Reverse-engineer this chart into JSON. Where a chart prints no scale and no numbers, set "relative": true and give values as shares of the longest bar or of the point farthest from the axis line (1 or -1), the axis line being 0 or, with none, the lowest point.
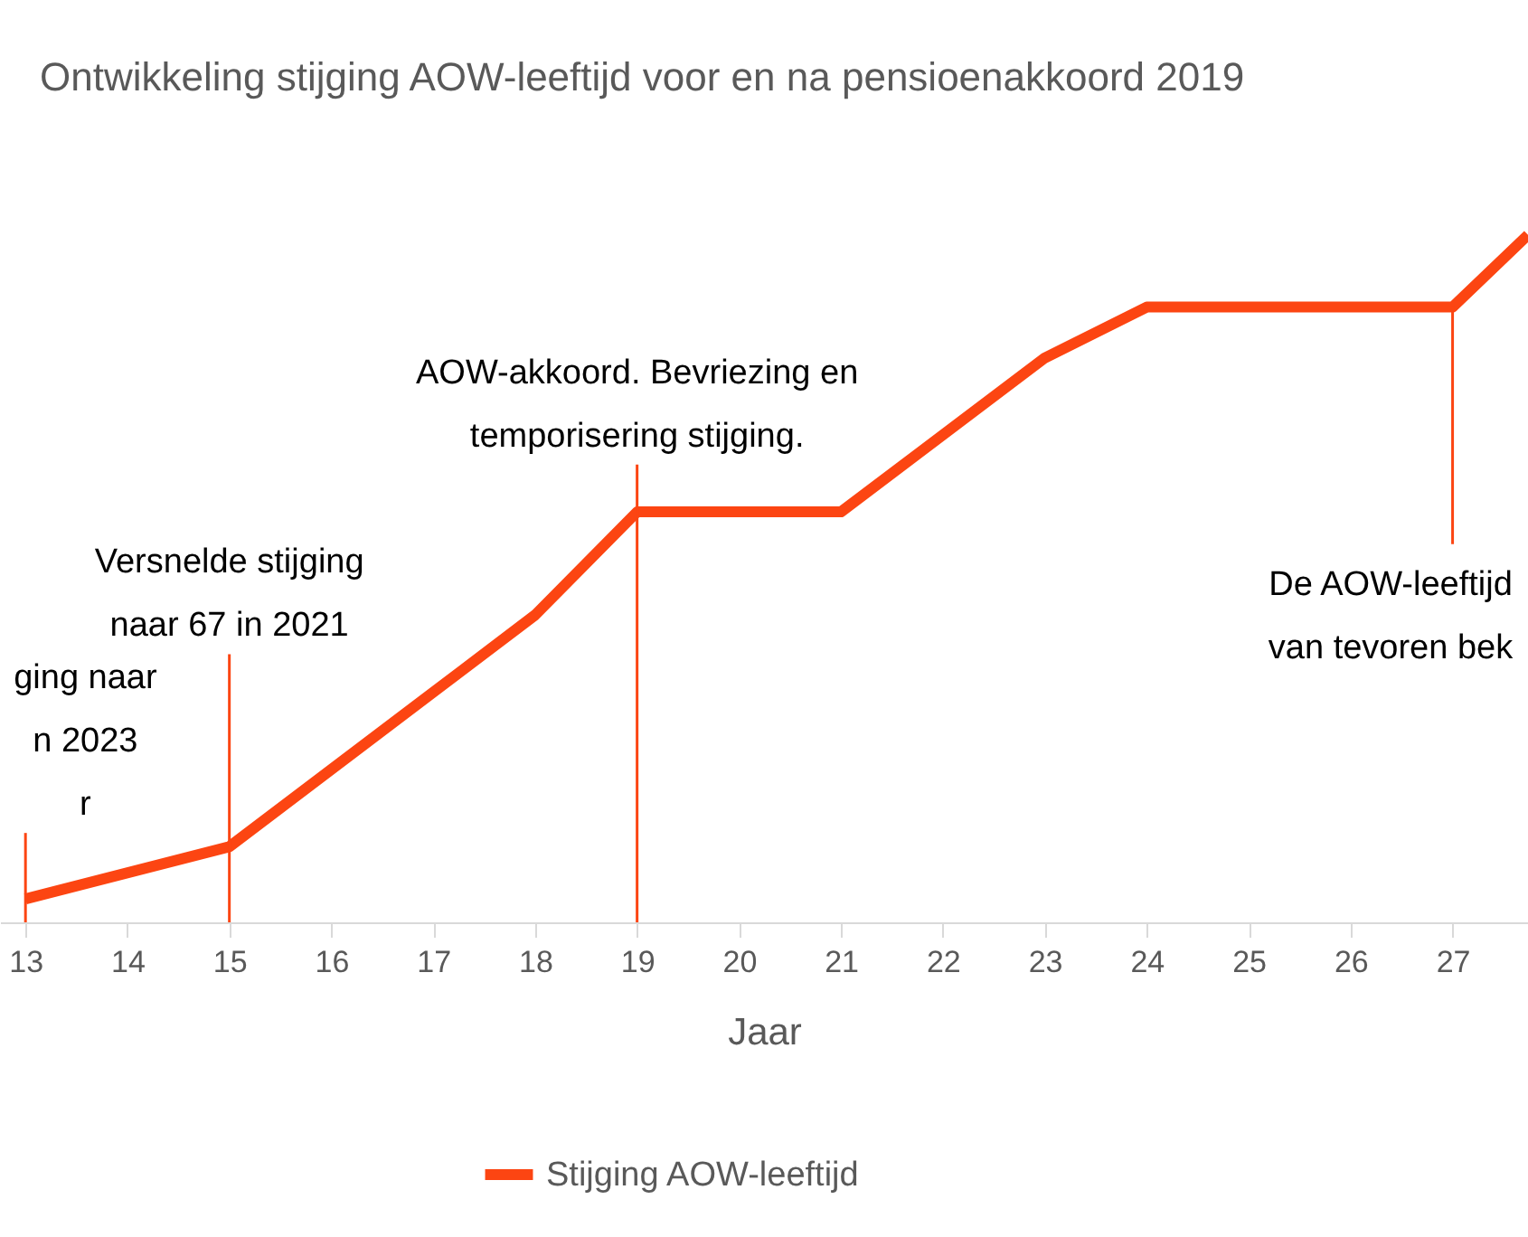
{
  "chart_data": {
    "type": "line",
    "title": "Ontwikkeling stijging AOW-leeftijd voor en na pensioenakkoord 2019",
    "xlabel": "Jaar",
    "relative": true,
    "x": [
      13,
      15,
      18,
      19,
      21,
      23,
      24,
      27,
      27.74
    ],
    "xlim": [
      12.75,
      27.74
    ],
    "xticks": [
      13,
      14,
      15,
      16,
      17,
      18,
      19,
      20,
      21,
      22,
      23,
      24,
      25,
      26,
      27
    ],
    "series": [
      {
        "name": "Stijging AOW-leeftijd",
        "color": "#fc4512",
        "values": [
          0.034,
          0.11,
          0.447,
          0.597,
          0.597,
          0.821,
          0.895,
          0.895,
          1
        ]
      }
    ],
    "ref_lines": [
      {
        "axis": "x",
        "value": 13,
        "label": "ging naar\nn 2023\nr"
      },
      {
        "axis": "x",
        "value": 15,
        "label": "Versnelde stijging\nnaar 67 in 2021"
      },
      {
        "axis": "x",
        "value": 19,
        "label": "AOW-akkoord. Bevriezing en\ntemporisering stijging."
      },
      {
        "axis": "x",
        "value": 27,
        "label": "De AOW-leeftijd\nvan tevoren bek"
      }
    ],
    "legend": "bottom",
    "marker": "none",
    "line_style": "solid",
    "grid": false
  }
}
